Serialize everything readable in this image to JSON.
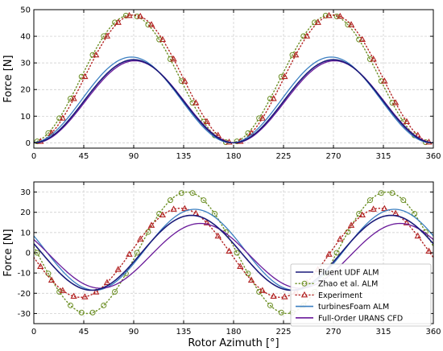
{
  "chart_data": [
    {
      "type": "line",
      "panel": "top",
      "xlabel": "",
      "ylabel": "Force [N]",
      "xlim": [
        0,
        360
      ],
      "ylim": [
        -2,
        50
      ],
      "xticks": [
        0,
        45,
        90,
        135,
        180,
        225,
        270,
        315,
        360
      ],
      "yticks": [
        0,
        10,
        20,
        30,
        40,
        50
      ],
      "grid": true,
      "curves": {
        "fluent": {
          "offset": 15.6,
          "amplitude": 15.6,
          "peak_phase": 90
        },
        "zhao": {
          "offset": 24.0,
          "amplitude": 24.0,
          "peak_phase": 87
        },
        "experiment": {
          "offset": 24.0,
          "amplitude": 24.0,
          "peak_phase": 90
        },
        "turbinesfoam": {
          "offset": 16.1,
          "amplitude": 16.1,
          "peak_phase": 88
        },
        "urans": {
          "offset": 15.4,
          "amplitude": 15.4,
          "peak_phase": 91
        }
      }
    },
    {
      "type": "line",
      "panel": "bottom",
      "xlabel": "Rotor Azimuth [°]",
      "ylabel": "Force [N]",
      "xlim": [
        0,
        360
      ],
      "ylim": [
        -35,
        35
      ],
      "xticks": [
        0,
        45,
        90,
        135,
        180,
        225,
        270,
        315,
        360
      ],
      "yticks": [
        -30,
        -20,
        -10,
        0,
        10,
        20,
        30
      ],
      "grid": true,
      "legend_position": "lower-right",
      "curves": {
        "fluent": {
          "offset": 0,
          "amplitude": 18.5,
          "peak_phase": 142
        },
        "zhao": {
          "offset": 0,
          "amplitude": 30.0,
          "peak_phase": 138
        },
        "experiment": {
          "offset": 0,
          "amplitude": 22.0,
          "peak_phase": 132
        },
        "turbinesfoam": {
          "offset": 1.5,
          "amplitude": 20.0,
          "peak_phase": 145
        },
        "urans": {
          "offset": -1.5,
          "amplitude": 16.0,
          "peak_phase": 150
        }
      }
    }
  ],
  "series": [
    {
      "key": "fluent",
      "name": "Fluent UDF ALM",
      "color": "#1a1a7a",
      "style": "solid-line"
    },
    {
      "key": "zhao",
      "name": "Zhao et al. ALM",
      "color": "#6b8e23",
      "style": "circle-dotted"
    },
    {
      "key": "experiment",
      "name": "Experiment",
      "color": "#b22222",
      "style": "triangle-dotted"
    },
    {
      "key": "turbinesfoam",
      "name": "turbinesFoam ALM",
      "color": "#3a7fc1",
      "style": "solid-line"
    },
    {
      "key": "urans",
      "name": "Full-Order URANS CFD",
      "color": "#6a1a9a",
      "style": "solid-line"
    }
  ]
}
